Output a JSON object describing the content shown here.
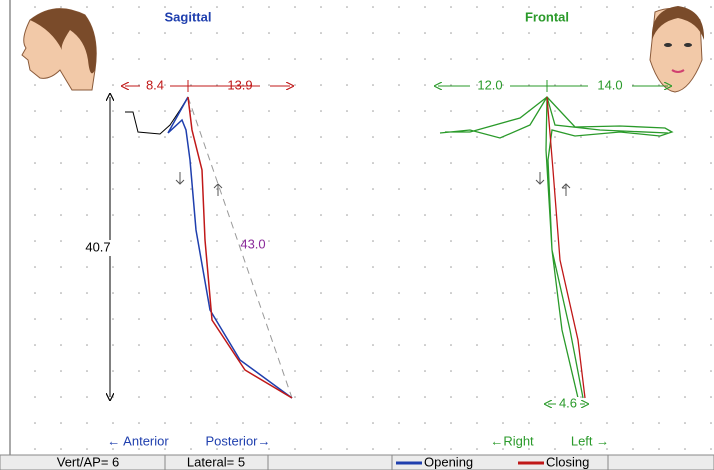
{
  "views": [
    {
      "title": "Sagittal",
      "measures": {
        "left": "8.4",
        "right": "13.9",
        "vertical": "40.7",
        "diagonal": "43.0"
      },
      "directions": [
        "← Anterior",
        "Posterior→"
      ]
    },
    {
      "title": "Frontal",
      "measures": {
        "left": "12.0",
        "right": "14.0",
        "bottom": "4.6"
      },
      "directions": [
        "←Right",
        "Left →"
      ]
    }
  ],
  "status_bar": {
    "cells": [
      "Vert/AP= 6",
      "Lateral= 5"
    ],
    "legend": [
      {
        "label": "Opening",
        "color": "#1f3fae"
      },
      {
        "label": "Closing",
        "color": "#c01818"
      }
    ]
  }
}
